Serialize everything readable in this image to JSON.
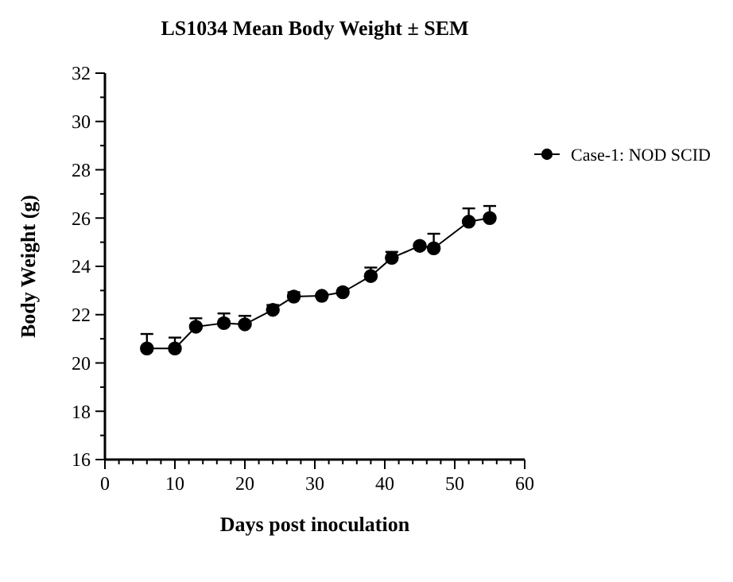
{
  "chart_data": {
    "type": "line",
    "title": "LS1034 Mean Body Weight ± SEM",
    "xlabel": "Days post inoculation",
    "ylabel": "Body Weight (g)",
    "x": [
      6,
      10,
      13,
      17,
      20,
      24,
      27,
      31,
      34,
      38,
      41,
      45,
      47,
      52,
      55
    ],
    "series": [
      {
        "name": "Case-1: NOD SCID",
        "color": "#000000",
        "values": [
          20.6,
          20.6,
          21.5,
          21.65,
          21.6,
          22.2,
          22.75,
          22.78,
          22.93,
          23.6,
          24.35,
          24.85,
          24.75,
          25.85,
          26.0
        ],
        "errors": [
          0.6,
          0.45,
          0.35,
          0.4,
          0.35,
          0.2,
          0.18,
          null,
          null,
          0.35,
          0.25,
          0.1,
          0.6,
          0.55,
          0.5
        ]
      }
    ],
    "xlim": [
      0,
      60
    ],
    "xticks": [
      0,
      {
        "value": 2,
        "label": null
      },
      {
        "value": 4,
        "label": null
      },
      {
        "value": 6,
        "label": null
      },
      {
        "value": 8,
        "label": null
      },
      10,
      {
        "value": 12,
        "label": null
      },
      {
        "value": 14,
        "label": null
      },
      {
        "value": 16,
        "label": null
      },
      {
        "value": 18,
        "label": null
      },
      20,
      {
        "value": 22,
        "label": null
      },
      {
        "value": 24,
        "label": null
      },
      {
        "value": 26,
        "label": null
      },
      {
        "value": 28,
        "label": null
      },
      30,
      {
        "value": 32,
        "label": null
      },
      {
        "value": 34,
        "label": null
      },
      {
        "value": 36,
        "label": null
      },
      {
        "value": 38,
        "label": null
      },
      40,
      {
        "value": 42,
        "label": null
      },
      {
        "value": 44,
        "label": null
      },
      {
        "value": 46,
        "label": null
      },
      {
        "value": 48,
        "label": null
      },
      50,
      {
        "value": 52,
        "label": null
      },
      {
        "value": 54,
        "label": null
      },
      {
        "value": 56,
        "label": null
      },
      {
        "value": 58,
        "label": null
      },
      60
    ],
    "ylim": [
      16,
      32
    ],
    "yticks": [
      16,
      {
        "value": 17,
        "label": null
      },
      18,
      {
        "value": 19,
        "label": null
      },
      20,
      {
        "value": 21,
        "label": null
      },
      22,
      {
        "value": 23,
        "label": null
      },
      24,
      {
        "value": 25,
        "label": null
      },
      26,
      {
        "value": 27,
        "label": null
      },
      28,
      {
        "value": 29,
        "label": null
      },
      30,
      {
        "value": 31,
        "label": null
      },
      32
    ],
    "marker": "circle",
    "line_style": "solid",
    "grid": false,
    "legend": "right"
  }
}
